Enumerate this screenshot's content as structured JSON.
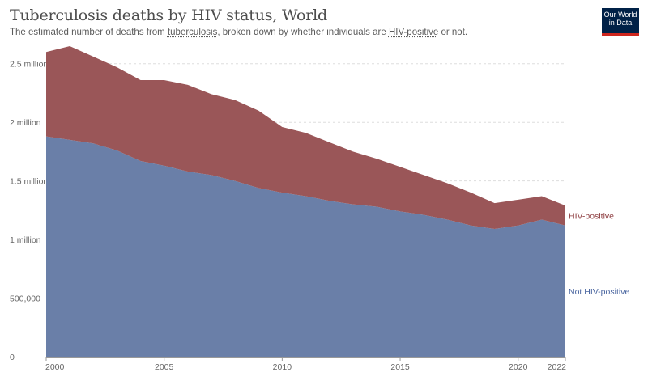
{
  "header": {
    "title": "Tuberculosis deaths by HIV status, World",
    "subtitle_before": "The estimated number of deaths from ",
    "subtitle_link1": "tuberculosis",
    "subtitle_middle": ", broken down by whether individuals are ",
    "subtitle_link2": "HIV-positive",
    "subtitle_after": " or not.",
    "logo_line1": "Our World",
    "logo_line2": "in Data"
  },
  "colors": {
    "not_hiv_positive": "#6a7fa8",
    "hiv_positive": "#9a5658",
    "not_hiv_label": "#4a66a0",
    "hiv_label": "#8c3b3e",
    "grid": "#dddddd",
    "axis": "#999999",
    "logo_bg": "#002147",
    "logo_accent": "#ce261e"
  },
  "chart_data": {
    "type": "area",
    "stacked": true,
    "title": "Tuberculosis deaths by HIV status, World",
    "xlabel": "",
    "ylabel": "",
    "x": [
      2000,
      2001,
      2002,
      2003,
      2004,
      2005,
      2006,
      2007,
      2008,
      2009,
      2010,
      2011,
      2012,
      2013,
      2014,
      2015,
      2016,
      2017,
      2018,
      2019,
      2020,
      2021,
      2022
    ],
    "series": [
      {
        "name": "Not HIV-positive",
        "values": [
          1880000,
          1850000,
          1820000,
          1760000,
          1670000,
          1630000,
          1580000,
          1550000,
          1500000,
          1440000,
          1400000,
          1370000,
          1330000,
          1300000,
          1280000,
          1240000,
          1210000,
          1170000,
          1120000,
          1090000,
          1120000,
          1170000,
          1120000
        ]
      },
      {
        "name": "HIV-positive",
        "values": [
          720000,
          800000,
          740000,
          710000,
          690000,
          730000,
          740000,
          690000,
          690000,
          660000,
          560000,
          540000,
          500000,
          450000,
          410000,
          380000,
          340000,
          310000,
          280000,
          220000,
          220000,
          200000,
          170000
        ]
      }
    ],
    "ylim": [
      0,
      2650000
    ],
    "yticks": [
      0,
      500000,
      1000000,
      1500000,
      2000000,
      2500000
    ],
    "ytick_labels": [
      "0",
      "500,000",
      "1 million",
      "1.5 million",
      "2 million",
      "2.5 million"
    ],
    "xticks": [
      2000,
      2005,
      2010,
      2015,
      2020,
      2022
    ],
    "xtick_labels": [
      "2000",
      "2005",
      "2010",
      "2015",
      "2020",
      "2022"
    ],
    "grid": "horizontal dashed",
    "legend": "inline labels at right end of series"
  }
}
